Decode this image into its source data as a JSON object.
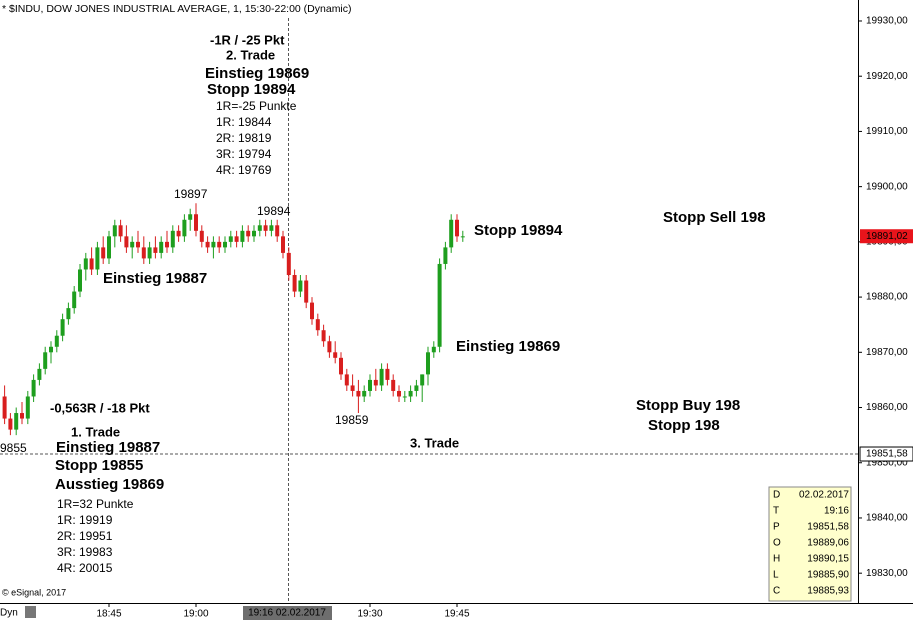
{
  "chart_data": {
    "type": "candlestick",
    "title": "* $INDU, DOW JONES INDUSTRIAL AVERAGE, 1, 15:30-22:00 (Dynamic)",
    "categories": [
      null,
      null,
      null,
      null,
      null,
      null,
      null,
      null,
      null,
      null,
      null,
      null,
      null,
      null,
      null,
      null,
      null,
      null,
      "18:45",
      null,
      null,
      null,
      null,
      null,
      null,
      null,
      null,
      null,
      null,
      null,
      null,
      null,
      null,
      "19:00",
      null,
      null,
      null,
      null,
      null,
      null,
      null,
      null,
      null,
      null,
      null,
      null,
      null,
      null,
      null,
      null,
      null,
      null,
      null,
      null,
      null,
      null,
      null,
      null,
      null,
      null,
      null,
      null,
      null,
      "19:30",
      null,
      null,
      null,
      null,
      null,
      null,
      null,
      null,
      null,
      null,
      null,
      null,
      null,
      null,
      "19:45",
      null
    ],
    "open": [
      19862,
      19858,
      19856,
      19859,
      19858,
      19862,
      19865,
      19867,
      19870,
      19871,
      19873,
      19876,
      19878,
      19881,
      19885,
      19887,
      19885,
      19889,
      19887,
      19891,
      19893,
      19891,
      19889,
      19890,
      19889,
      19887,
      19889,
      19888,
      19890,
      19889,
      19892,
      19891,
      19894,
      19895,
      19892,
      19890,
      19889,
      19890,
      19889,
      19890,
      19891,
      19890,
      19892,
      19891,
      19892,
      19893,
      19892,
      19893,
      19891,
      19888,
      19884,
      19881,
      19883,
      19879,
      19876,
      19874,
      19872,
      19870,
      19869,
      19866,
      19864,
      19863,
      19862,
      19863,
      19865,
      19864,
      19867,
      19865,
      19863,
      19862,
      19862,
      19863,
      19864,
      19866,
      19870,
      19871,
      19886,
      19889,
      19894,
      19891
    ],
    "high": [
      19864,
      19859,
      19860,
      19861,
      19863,
      19866,
      19868,
      19871,
      19872,
      19874,
      19877,
      19879,
      19882,
      19886,
      19888,
      19889,
      19890,
      19891,
      19892,
      19894,
      19894,
      19893,
      19891,
      19892,
      19891,
      19890,
      19891,
      19891,
      19892,
      19893,
      19893,
      19895,
      19896,
      19897,
      19893,
      19891,
      19891,
      19891,
      19891,
      19892,
      19892,
      19893,
      19893,
      19893,
      19894,
      19894,
      19894,
      19894,
      19892,
      19889,
      19885,
      19884,
      19884,
      19880,
      19877,
      19875,
      19873,
      19872,
      19870,
      19867,
      19866,
      19865,
      19864,
      19866,
      19867,
      19868,
      19868,
      19866,
      19864,
      19863,
      19864,
      19865,
      19866,
      19871,
      19872,
      19887,
      19890,
      19895,
      19895,
      19892
    ],
    "low": [
      19857,
      19855,
      19855,
      19857,
      19857,
      19861,
      19864,
      19866,
      19868,
      19870,
      19872,
      19875,
      19877,
      19880,
      19883,
      19884,
      19884,
      19886,
      19886,
      19889,
      19890,
      19888,
      19887,
      19888,
      19886,
      19886,
      19887,
      19887,
      19888,
      19888,
      19890,
      19890,
      19892,
      19891,
      19889,
      19888,
      19887,
      19888,
      19888,
      19889,
      19889,
      19889,
      19890,
      19890,
      19891,
      19891,
      19891,
      19890,
      19887,
      19883,
      19880,
      19880,
      19878,
      19875,
      19873,
      19871,
      19869,
      19868,
      19865,
      19863,
      19862,
      19859,
      19861,
      19862,
      19863,
      19863,
      19864,
      19862,
      19861,
      19861,
      19861,
      19862,
      19861,
      19864,
      19869,
      19870,
      19885,
      19888,
      19890,
      19890
    ],
    "close": [
      19858,
      19856,
      19859,
      19858,
      19862,
      19865,
      19867,
      19870,
      19871,
      19873,
      19876,
      19878,
      19881,
      19885,
      19887,
      19885,
      19889,
      19887,
      19891,
      19893,
      19891,
      19889,
      19890,
      19889,
      19887,
      19889,
      19888,
      19890,
      19889,
      19892,
      19891,
      19894,
      19895,
      19892,
      19890,
      19889,
      19890,
      19889,
      19890,
      19891,
      19890,
      19892,
      19891,
      19892,
      19893,
      19892,
      19893,
      19891,
      19888,
      19884,
      19881,
      19883,
      19879,
      19876,
      19874,
      19872,
      19870,
      19869,
      19866,
      19864,
      19863,
      19862,
      19863,
      19865,
      19864,
      19867,
      19865,
      19863,
      19862,
      19862,
      19863,
      19864,
      19866,
      19870,
      19871,
      19886,
      19889,
      19894,
      19891,
      19891
    ],
    "up_color": "#1e9e1e",
    "down_color": "#d81e1e",
    "ylim": [
      19824.6,
      19933.8
    ],
    "yticks": [
      {
        "value": 19830,
        "label": "19830,00"
      },
      {
        "value": 19840,
        "label": "19840,00"
      },
      {
        "value": 19850,
        "label": "19850,00"
      },
      {
        "value": 19860,
        "label": "19860,00"
      },
      {
        "value": 19870,
        "label": "19870,00"
      },
      {
        "value": 19880,
        "label": "19880,00"
      },
      {
        "value": 19890,
        "label": "19890,00"
      },
      {
        "value": 19900,
        "label": "19900,00"
      },
      {
        "value": 19910,
        "label": "19910,00"
      },
      {
        "value": 19920,
        "label": "19920,00"
      },
      {
        "value": 19930,
        "label": "19930,00"
      }
    ],
    "last_price": {
      "value": 19891.02,
      "label": "19891,02"
    },
    "crosshair": {
      "value": 19851.58,
      "label": "19851,58",
      "time_label": "19:16 02.02.2017"
    },
    "annotations": [
      {
        "text": "-1R / -25 Pkt",
        "color": "#000000"
      },
      {
        "text": "2. Trade",
        "color": "#000000"
      },
      {
        "text": "Einstieg 19869",
        "color": "#e8141b"
      },
      {
        "text": "Stopp 19894",
        "color": "#e8141b"
      },
      {
        "text": "1R=-25 Punkte",
        "color": "#000000"
      },
      {
        "text": "1R: 19844",
        "color": "#000000"
      },
      {
        "text": "2R: 19819",
        "color": "#000000"
      },
      {
        "text": "3R: 19794",
        "color": "#000000"
      },
      {
        "text": "4R: 19769",
        "color": "#000000"
      },
      {
        "text": "19897",
        "color": "#000000"
      },
      {
        "text": "19894",
        "color": "#000000"
      },
      {
        "text": "Einstieg 19887",
        "color": "#1a9a1a"
      },
      {
        "text": "Stopp 19894",
        "color": "#e8141b"
      },
      {
        "text": "Stopp Sell 198",
        "color": "#e8141b"
      },
      {
        "text": "Einstieg 19869",
        "color": "#e8141b"
      },
      {
        "text": "19859",
        "color": "#000000"
      },
      {
        "text": "-0,563R / -18 Pkt",
        "color": "#000000"
      },
      {
        "text": "1. Trade",
        "color": "#000000"
      },
      {
        "text": "3. Trade",
        "color": "#000000"
      },
      {
        "text": "9855",
        "color": "#000000"
      },
      {
        "text": "Stopp Buy 198",
        "color": "#1010d0"
      },
      {
        "text": "Stopp 198",
        "color": "#1010d0"
      },
      {
        "text": "Einstieg 19887",
        "color": "#1a9a1a"
      },
      {
        "text": "Stopp 19855",
        "color": "#1a9a1a"
      },
      {
        "text": "Ausstieg 19869",
        "color": "#1a9a1a"
      },
      {
        "text": "1R=32 Punkte",
        "color": "#000000"
      },
      {
        "text": "1R: 19919",
        "color": "#000000"
      },
      {
        "text": "2R: 19951",
        "color": "#000000"
      },
      {
        "text": "3R: 19983",
        "color": "#000000"
      },
      {
        "text": "4R: 20015",
        "color": "#000000"
      }
    ],
    "info_box": [
      [
        "D",
        "02.02.2017"
      ],
      [
        "T",
        "19:16"
      ],
      [
        "P",
        "19851,58"
      ],
      [
        "O",
        "19889,06"
      ],
      [
        "H",
        "19890,15"
      ],
      [
        "L",
        "19885,90"
      ],
      [
        "C",
        "19885,93"
      ]
    ],
    "copyright": "© eSignal, 2017",
    "mode": "Dyn"
  }
}
